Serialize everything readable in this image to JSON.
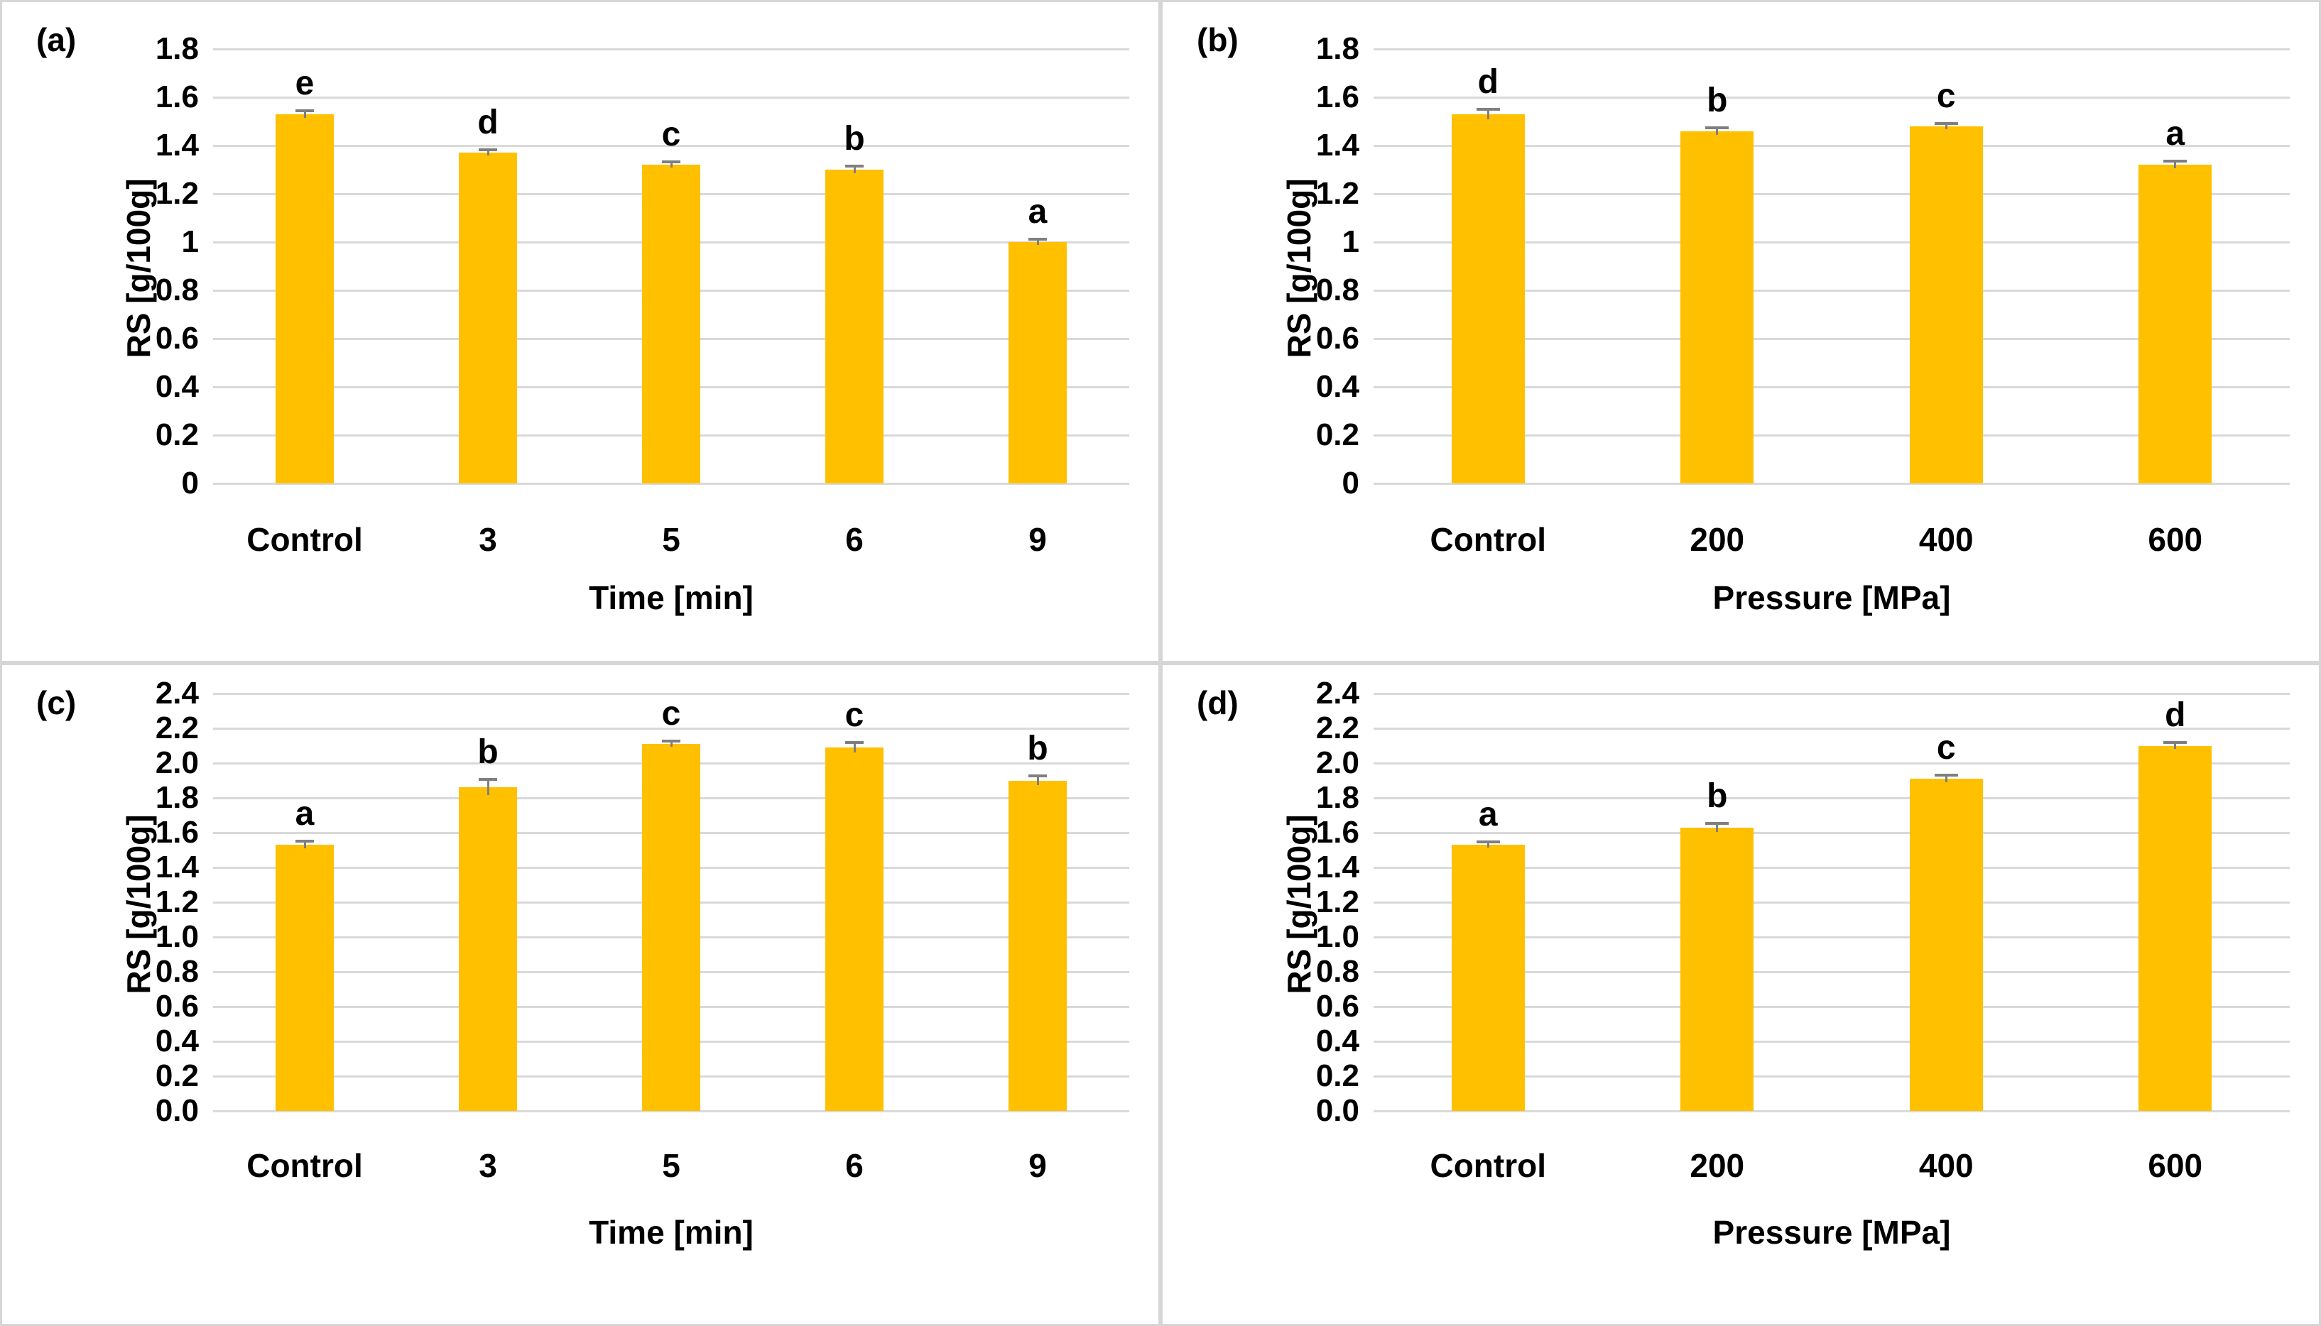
{
  "colors": {
    "bar": "#FFC000",
    "gridline": "#D9D9D9",
    "error_bar": "#7F7F7F",
    "panel_border": "#D6D6D6",
    "text": "#000000"
  },
  "chart_data": [
    {
      "type": "bar",
      "panel_label": "(a)",
      "ylabel": "RS [g/100g]",
      "xlabel": "Time [min]",
      "ylim": [
        0,
        1.8
      ],
      "grid": true,
      "legend": "none",
      "ytick_labels": [
        "1.8",
        "1.6",
        "1.4",
        "1.2",
        "1",
        "0.8",
        "0.6",
        "0.4",
        "0.2",
        "0"
      ],
      "ytick_values": [
        1.8,
        1.6,
        1.4,
        1.2,
        1.0,
        0.8,
        0.6,
        0.4,
        0.2,
        0
      ],
      "categories": [
        "Control",
        "3",
        "5",
        "6",
        "9"
      ],
      "values": [
        1.53,
        1.37,
        1.32,
        1.3,
        1.0
      ],
      "errors": [
        0.015,
        0.012,
        0.012,
        0.015,
        0.012
      ],
      "letters": [
        "e",
        "d",
        "c",
        "b",
        "a"
      ]
    },
    {
      "type": "bar",
      "panel_label": "(b)",
      "ylabel": "RS [g/100g]",
      "xlabel": "Pressure [MPa]",
      "ylim": [
        0,
        1.8
      ],
      "grid": true,
      "legend": "none",
      "ytick_labels": [
        "1.8",
        "1.6",
        "1.4",
        "1.2",
        "1",
        "0.8",
        "0.6",
        "0.4",
        "0.2",
        "0"
      ],
      "ytick_values": [
        1.8,
        1.6,
        1.4,
        1.2,
        1.0,
        0.8,
        0.6,
        0.4,
        0.2,
        0
      ],
      "categories": [
        "Control",
        "200",
        "400",
        "600"
      ],
      "values": [
        1.53,
        1.46,
        1.48,
        1.32
      ],
      "errors": [
        0.02,
        0.015,
        0.012,
        0.015
      ],
      "letters": [
        "d",
        "b",
        "c",
        "a"
      ]
    },
    {
      "type": "bar",
      "panel_label": "(c)",
      "ylabel": "RS [g/100g]",
      "xlabel": "Time [min]",
      "ylim": [
        0,
        2.4
      ],
      "grid": true,
      "legend": "none",
      "ytick_labels": [
        "2.4",
        "2.2",
        "2.0",
        "1.8",
        "1.6",
        "1.4",
        "1.2",
        "1.0",
        "0.8",
        "0.6",
        "0.4",
        "0.2",
        "0.0"
      ],
      "ytick_values": [
        2.4,
        2.2,
        2.0,
        1.8,
        1.6,
        1.4,
        1.2,
        1.0,
        0.8,
        0.6,
        0.4,
        0.2,
        0
      ],
      "categories": [
        "Control",
        "3",
        "5",
        "6",
        "9"
      ],
      "values": [
        1.53,
        1.86,
        2.11,
        2.09,
        1.9
      ],
      "errors": [
        0.02,
        0.045,
        0.015,
        0.03,
        0.025
      ],
      "letters": [
        "a",
        "b",
        "c",
        "c",
        "b"
      ]
    },
    {
      "type": "bar",
      "panel_label": "(d)",
      "ylabel": "RS [g/100g]",
      "xlabel": "Pressure [MPa]",
      "ylim": [
        0,
        2.4
      ],
      "grid": true,
      "legend": "none",
      "ytick_labels": [
        "2.4",
        "2.2",
        "2.0",
        "1.8",
        "1.6",
        "1.4",
        "1.2",
        "1.0",
        "0.8",
        "0.6",
        "0.4",
        "0.2",
        "0.0"
      ],
      "ytick_values": [
        2.4,
        2.2,
        2.0,
        1.8,
        1.6,
        1.4,
        1.2,
        1.0,
        0.8,
        0.6,
        0.4,
        0.2,
        0
      ],
      "categories": [
        "Control",
        "200",
        "400",
        "600"
      ],
      "values": [
        1.53,
        1.63,
        1.91,
        2.1
      ],
      "errors": [
        0.015,
        0.025,
        0.02,
        0.02
      ],
      "letters": [
        "a",
        "b",
        "c",
        "d"
      ]
    }
  ]
}
